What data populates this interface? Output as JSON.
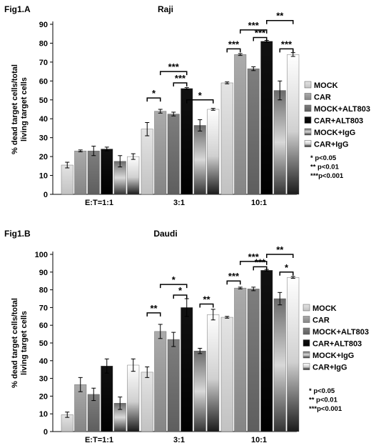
{
  "colors": {
    "MOCK": "#d4d4d4",
    "CAR": "#9a9a9a",
    "MOCK+ALT803": "#6e6e6e",
    "CAR+ALT803": "#0a0a0a",
    "MOCK+IgG": "#555555",
    "CAR+IgG": "#b0b0b0"
  },
  "chart_data": [
    {
      "type": "bar",
      "panel_label": "Fig1.A",
      "title": "Raji",
      "ylabel": "% dead target cells/total living target cells",
      "ylim": [
        0,
        90
      ],
      "yticks": [
        0,
        10,
        20,
        30,
        40,
        50,
        60,
        70,
        80,
        90
      ],
      "categories": [
        "E:T=1:1",
        "3:1",
        "10:1"
      ],
      "series": [
        {
          "name": "MOCK",
          "values": [
            15.5,
            34.5,
            59
          ],
          "errors": [
            1.5,
            3.5,
            0.5
          ]
        },
        {
          "name": "CAR",
          "values": [
            23,
            44,
            74
          ],
          "errors": [
            0.5,
            1,
            0.5
          ]
        },
        {
          "name": "MOCK+ALT803",
          "values": [
            23,
            42.5,
            66.5
          ],
          "errors": [
            2.5,
            1,
            1
          ]
        },
        {
          "name": "CAR+ALT803",
          "values": [
            24,
            56,
            81
          ],
          "errors": [
            1,
            0.5,
            0.5
          ]
        },
        {
          "name": "MOCK+IgG",
          "values": [
            17.5,
            36.5,
            55
          ],
          "errors": [
            3,
            3,
            5
          ]
        },
        {
          "name": "CAR+IgG",
          "values": [
            20,
            45,
            74
          ],
          "errors": [
            1.5,
            0.5,
            1
          ]
        }
      ],
      "significance": [
        {
          "group": 1,
          "from": 0,
          "to": 1,
          "label": "*",
          "y": 51
        },
        {
          "group": 1,
          "from": 1,
          "to": 3,
          "label": "***",
          "y": 65
        },
        {
          "group": 1,
          "from": 2,
          "to": 3,
          "label": "***",
          "y": 59
        },
        {
          "group": 1,
          "from": 3,
          "to": 5,
          "label": "*",
          "y": 50
        },
        {
          "group": 2,
          "from": 0,
          "to": 1,
          "label": "***",
          "y": 77
        },
        {
          "group": 2,
          "from": 1,
          "to": 3,
          "label": "***",
          "y": 87
        },
        {
          "group": 2,
          "from": 2,
          "to": 3,
          "label": "***",
          "y": 83
        },
        {
          "group": 2,
          "from": 3,
          "to": 5,
          "label": "**",
          "y": 92
        },
        {
          "group": 2,
          "from": 4,
          "to": 5,
          "label": "***",
          "y": 77
        }
      ],
      "pvalue_legend": [
        "*   p<0.05",
        "**  p<0.01",
        "***p<0.001"
      ]
    },
    {
      "type": "bar",
      "panel_label": "Fig1.B",
      "title": "Daudi",
      "ylabel": "% dead target cells/total living target cells",
      "ylim": [
        0,
        100
      ],
      "yticks": [
        0,
        10,
        20,
        30,
        40,
        50,
        60,
        70,
        80,
        90,
        100
      ],
      "categories": [
        "E:T=1:1",
        "3:1",
        "10:1"
      ],
      "series": [
        {
          "name": "MOCK",
          "values": [
            9.5,
            33.5,
            64.5
          ],
          "errors": [
            1.5,
            3,
            0.5
          ]
        },
        {
          "name": "CAR",
          "values": [
            26.5,
            56.5,
            81
          ],
          "errors": [
            4,
            4,
            0.5
          ]
        },
        {
          "name": "MOCK+ALT803",
          "values": [
            21,
            52,
            80.5
          ],
          "errors": [
            3.5,
            4,
            1
          ]
        },
        {
          "name": "CAR+ALT803",
          "values": [
            37,
            70,
            91
          ],
          "errors": [
            4,
            5,
            0.5
          ]
        },
        {
          "name": "MOCK+IgG",
          "values": [
            16,
            45.5,
            75
          ],
          "errors": [
            3.5,
            1.5,
            3.5
          ]
        },
        {
          "name": "CAR+IgG",
          "values": [
            37.5,
            66,
            87
          ],
          "errors": [
            3.5,
            3,
            0.5
          ]
        }
      ],
      "significance": [
        {
          "group": 1,
          "from": 0,
          "to": 1,
          "label": "**",
          "y": 67
        },
        {
          "group": 1,
          "from": 1,
          "to": 3,
          "label": "*",
          "y": 83
        },
        {
          "group": 1,
          "from": 2,
          "to": 3,
          "label": "*",
          "y": 77
        },
        {
          "group": 1,
          "from": 4,
          "to": 5,
          "label": "**",
          "y": 72
        },
        {
          "group": 2,
          "from": 0,
          "to": 1,
          "label": "***",
          "y": 85
        },
        {
          "group": 2,
          "from": 1,
          "to": 3,
          "label": "***",
          "y": 96
        },
        {
          "group": 2,
          "from": 2,
          "to": 3,
          "label": "***",
          "y": 93
        },
        {
          "group": 2,
          "from": 3,
          "to": 5,
          "label": "**",
          "y": 100
        },
        {
          "group": 2,
          "from": 4,
          "to": 5,
          "label": "*",
          "y": 90
        }
      ],
      "pvalue_legend": [
        "*   p<0.05",
        "**  p<0.01",
        "***p<0.001"
      ]
    }
  ]
}
